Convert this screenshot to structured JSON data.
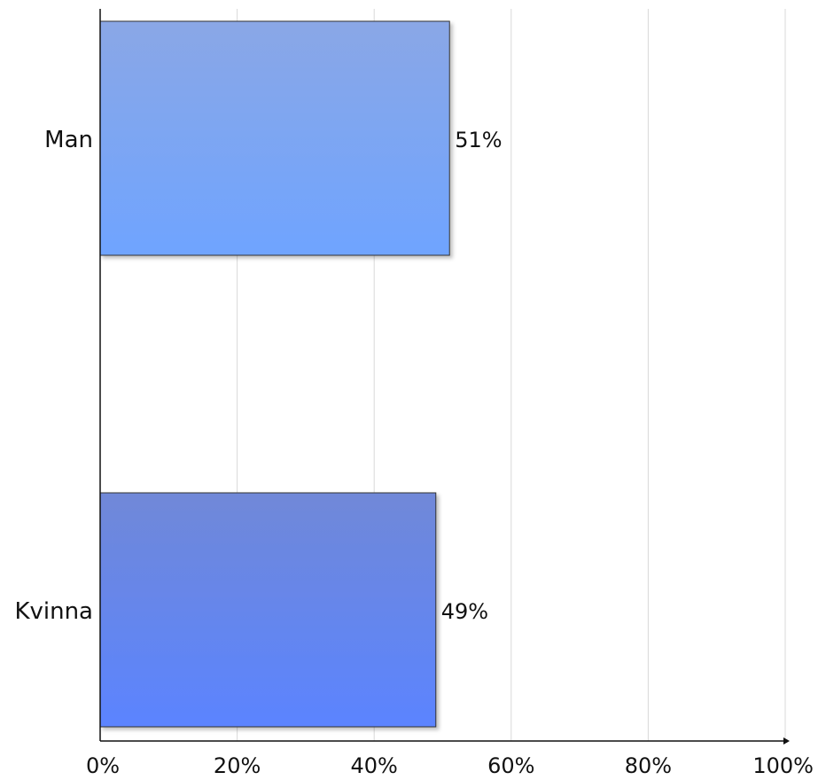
{
  "chart_data": {
    "type": "bar",
    "orientation": "horizontal",
    "categories": [
      "Man",
      "Kvinna"
    ],
    "values": [
      51,
      49
    ],
    "value_labels": [
      "51%",
      "49%"
    ],
    "xlim": [
      0,
      100
    ],
    "x_ticks": [
      0,
      20,
      40,
      60,
      80,
      100
    ],
    "x_tick_labels": [
      "0%",
      "20%",
      "40%",
      "60%",
      "80%",
      "100%"
    ],
    "grid": true,
    "bar_colors": [
      [
        "#8aa7e6",
        "#6fa4ff"
      ],
      [
        "#7088d8",
        "#5b84ff"
      ]
    ]
  }
}
